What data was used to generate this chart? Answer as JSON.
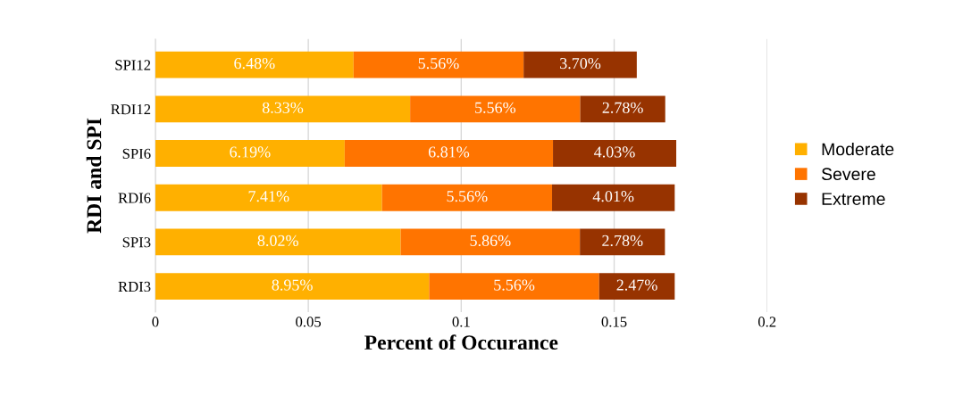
{
  "chart_data": {
    "type": "bar",
    "orientation": "horizontal",
    "stacked": true,
    "xlabel": "Percent of Occurance",
    "ylabel": "RDI and SPI",
    "categories": [
      "SPI12",
      "RDI12",
      "SPI6",
      "RDI6",
      "SPI3",
      "RDI3"
    ],
    "series": [
      {
        "name": "Moderate",
        "color": "#ffb000",
        "values": [
          0.0648,
          0.0833,
          0.0619,
          0.0741,
          0.0802,
          0.0895
        ],
        "value_labels": [
          "6.48%",
          "8.33%",
          "6.19%",
          "7.41%",
          "8.02%",
          "8.95%"
        ]
      },
      {
        "name": "Severe",
        "color": "#ff7400",
        "values": [
          0.0556,
          0.0556,
          0.0681,
          0.0556,
          0.0586,
          0.0556
        ],
        "value_labels": [
          "5.56%",
          "5.56%",
          "6.81%",
          "5.56%",
          "5.86%",
          "5.56%"
        ]
      },
      {
        "name": "Extreme",
        "color": "#973300",
        "values": [
          0.037,
          0.0278,
          0.0403,
          0.0401,
          0.0278,
          0.0247
        ],
        "value_labels": [
          "3.70%",
          "2.78%",
          "4.03%",
          "4.01%",
          "2.78%",
          "2.47%"
        ]
      }
    ],
    "xlim": [
      0,
      0.2
    ],
    "xticks": [
      0,
      0.05,
      0.1,
      0.15,
      0.2
    ],
    "grid": "x",
    "legend": "right"
  }
}
